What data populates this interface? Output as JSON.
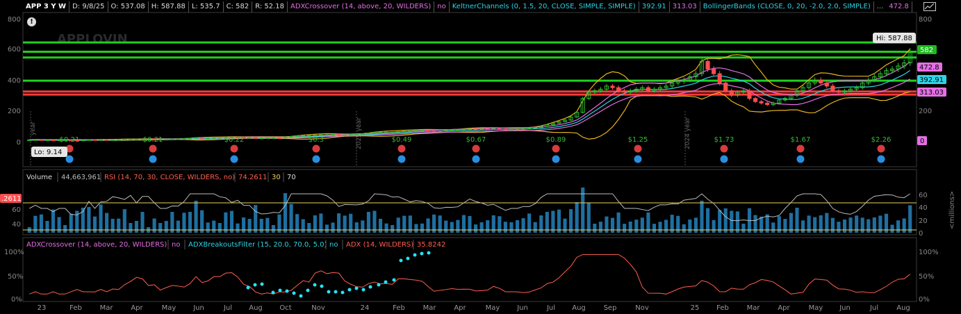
{
  "header": {
    "symbol": "APP 3 Y W",
    "date": "D: 9/8/25",
    "open": "O: 537.08",
    "high": "H: 587.88",
    "low": "L: 535.7",
    "close": "C: 582",
    "range": "R: 52.18",
    "study1": "ADXCrossover (14, above, 20, WILDERS)",
    "study1_val": "no",
    "study2": "KeltnerChannels (0, 1.5, 20, CLOSE, SIMPLE, SIMPLE)",
    "study2_v1": "392.91",
    "study2_v2": "472.8",
    "study2_v3": "313.03",
    "study3": "BollingerBands (CLOSE, 0, 20, -2.0, 2.0, SIMPLE)",
    "more": "..."
  },
  "watermark": "APPLOVIN",
  "price_axis": [
    "800",
    "600",
    "400",
    "200",
    "0"
  ],
  "price_axis_right": [
    "800",
    "600",
    "400",
    "200"
  ],
  "price_labels": {
    "last": "582",
    "kc_upper": "472.8",
    "kc_mid": "392.91",
    "kc_lower": "313.03",
    "zero": "0"
  },
  "hi_label": "Hi: 587.88",
  "lo_label": "Lo: 9.14",
  "year_markers": [
    "year",
    "2025 year",
    "2024 year"
  ],
  "dividends": [
    "$0.21",
    "$0.21",
    "$0.22",
    "$0.3",
    "$0.49",
    "$0.67",
    "$0.89",
    "$1.25",
    "$1.73",
    "$1.67",
    "$2.26"
  ],
  "volume_header": {
    "label": "Volume",
    "value": "44,663,961",
    "rsi": "RSI (14, 70, 30, CLOSE, WILDERS, no)",
    "rsi_val": "74.2611",
    "os": "30",
    "ob": "70"
  },
  "rsi_left_label": ".2611",
  "volume_axis_left": [
    "60",
    "40"
  ],
  "volume_axis_right": [
    "60",
    "40",
    "20",
    "0"
  ],
  "volume_unit": "<millions>",
  "adx_header": {
    "study1": "ADXCrossover (14, above, 20, WILDERS)",
    "study1_val": "no",
    "study2": "ADXBreakoutsFilter (15, 20.0, 70.0, 5.0)",
    "study2_val": "no",
    "study3": "ADX (14, WILDERS)",
    "study3_val": "35.8242"
  },
  "adx_axis": [
    "100%",
    "50%",
    "0%"
  ],
  "time_axis": [
    "23",
    "Feb",
    "Mar",
    "Apr",
    "May",
    "Jun",
    "Jul",
    "Aug",
    "Oct",
    "Nov",
    "24",
    "Feb",
    "Mar",
    "Apr",
    "May",
    "Jun",
    "Jul",
    "Aug",
    "Sep",
    "Nov",
    "25",
    "Feb",
    "Mar",
    "Apr",
    "May",
    "Jun",
    "Jul",
    "Aug"
  ],
  "colors": {
    "background": "#000000",
    "up": "#2ec02e",
    "down": "#ff4d4d",
    "support": "#1fd11f",
    "resistance": "#ff3b3b",
    "keltner_mid": "#2fd3e6",
    "keltner_band": "#e56fe5",
    "bollinger": "#e8b51e",
    "volume": "#1f6fa0",
    "rsi": "#bbbbbb",
    "adx": "#ff5f4f",
    "breakout": "#22e5f5"
  },
  "chart_data": {
    "type": "candlestick",
    "ylim": [
      0,
      800
    ],
    "y_ticks": [
      0,
      200,
      400,
      600,
      800
    ],
    "close": [
      12,
      13,
      12,
      12,
      11,
      12,
      12,
      11,
      10,
      11,
      13,
      12,
      14,
      13,
      13,
      14,
      16,
      16,
      16,
      17,
      17,
      16,
      16,
      16,
      17,
      18,
      20,
      22,
      26,
      24,
      25,
      26,
      26,
      28,
      30,
      29,
      27,
      28,
      24,
      24,
      26,
      26,
      24,
      30,
      34,
      38,
      40,
      40,
      42,
      44,
      45,
      46,
      42,
      44,
      46,
      48,
      50,
      55,
      60,
      60,
      62,
      62,
      65,
      68,
      70,
      72,
      73,
      70,
      66,
      68,
      72,
      74,
      76,
      80,
      82,
      80,
      82,
      80,
      84,
      82,
      78,
      80,
      82,
      84,
      88,
      92,
      100,
      110,
      120,
      130,
      140,
      160,
      190,
      280,
      320,
      330,
      340,
      360,
      350,
      330,
      320,
      330,
      340,
      350,
      330,
      340,
      350,
      360,
      380,
      390,
      400,
      420,
      440,
      520,
      470,
      440,
      380,
      330,
      300,
      320,
      330,
      280,
      260,
      250,
      240,
      250,
      270,
      280,
      300,
      330,
      350,
      380,
      400,
      380,
      360,
      330,
      320,
      330,
      340,
      350,
      380,
      400,
      420,
      440,
      460,
      470,
      490,
      510,
      582
    ],
    "support_levels": [
      642,
      582,
      545,
      395
    ],
    "resistance_levels": [
      325,
      305
    ],
    "keltner_current": {
      "upper": 472.8,
      "middle": 392.91,
      "lower": 313.03
    },
    "volume_axis": [
      0,
      20,
      40,
      60
    ],
    "volume_unit": "millions",
    "rsi_levels": [
      30,
      70
    ],
    "adx_last": 35.8242,
    "last": {
      "open": 537.08,
      "high": 587.88,
      "low": 535.7,
      "close": 582
    }
  }
}
